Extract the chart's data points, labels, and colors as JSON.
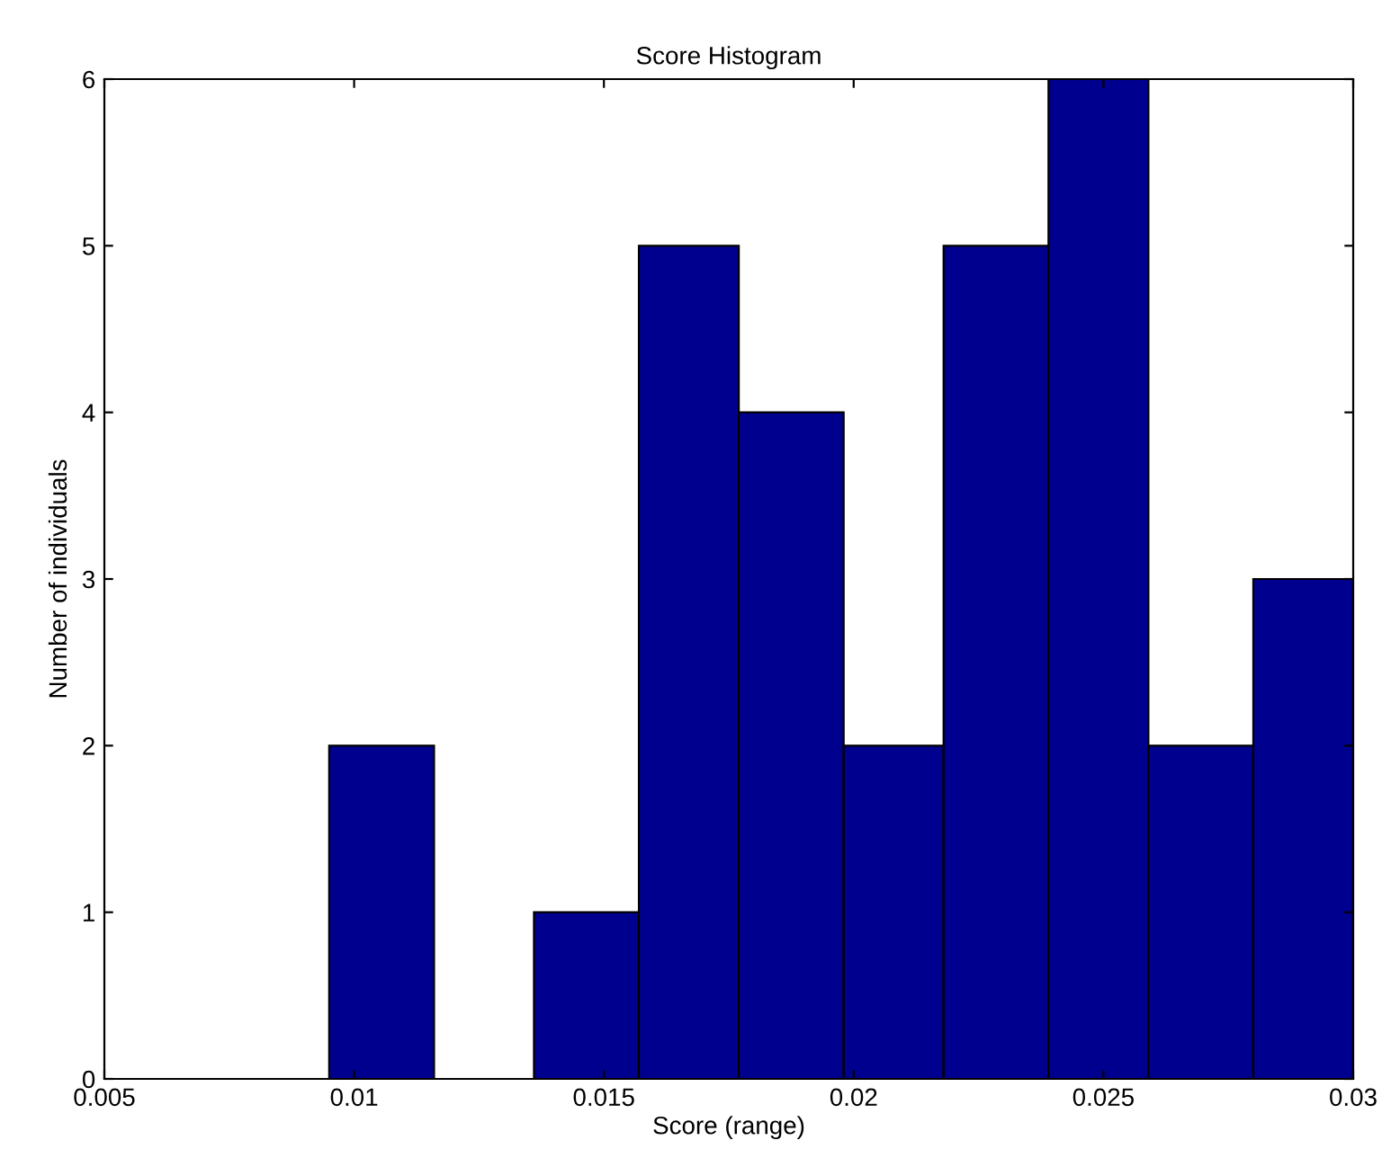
{
  "chart_data": {
    "type": "histogram",
    "title": "Score Histogram",
    "xlabel": "Score (range)",
    "ylabel": "Number of individuals",
    "bins": [
      0.0095,
      0.0116,
      0.0136,
      0.0157,
      0.0177,
      0.0198,
      0.0218,
      0.0239,
      0.0259,
      0.028,
      0.03
    ],
    "values": [
      2,
      0,
      1,
      5,
      4,
      2,
      5,
      6,
      2,
      3
    ],
    "color": "#00008f",
    "xlim": [
      0.005,
      0.03
    ],
    "xticks": [
      0.005,
      0.01,
      0.015,
      0.02,
      0.025,
      0.03
    ],
    "ylim": [
      0,
      6
    ],
    "yticks": [
      0,
      1,
      2,
      3,
      4,
      5,
      6
    ],
    "grid": false
  }
}
